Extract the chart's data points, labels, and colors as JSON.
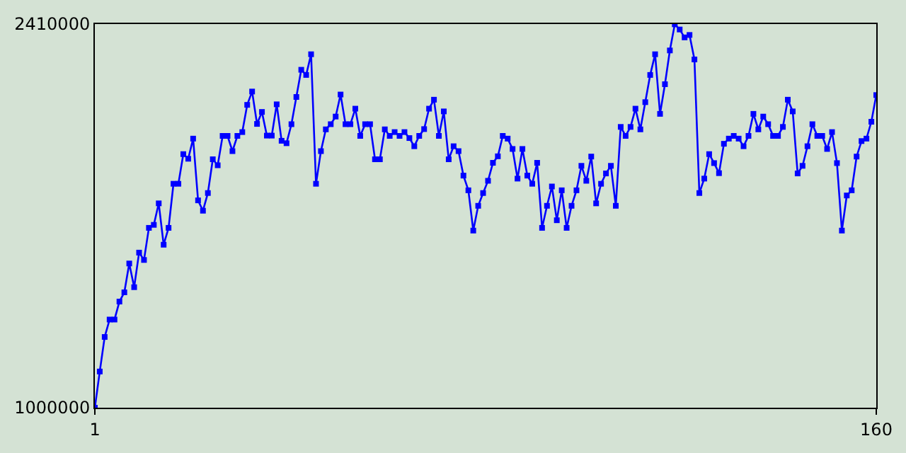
{
  "chart_data": {
    "type": "line",
    "marker": "square",
    "line_style": "solid",
    "x": [
      1,
      2,
      3,
      4,
      5,
      6,
      7,
      8,
      9,
      10,
      11,
      12,
      13,
      14,
      15,
      16,
      17,
      18,
      19,
      20,
      21,
      22,
      23,
      24,
      25,
      26,
      27,
      28,
      29,
      30,
      31,
      32,
      33,
      34,
      35,
      36,
      37,
      38,
      39,
      40,
      41,
      42,
      43,
      44,
      45,
      46,
      47,
      48,
      49,
      50,
      51,
      52,
      53,
      54,
      55,
      56,
      57,
      58,
      59,
      60,
      61,
      62,
      63,
      64,
      65,
      66,
      67,
      68,
      69,
      70,
      71,
      72,
      73,
      74,
      75,
      76,
      77,
      78,
      79,
      80,
      81,
      82,
      83,
      84,
      85,
      86,
      87,
      88,
      89,
      90,
      91,
      92,
      93,
      94,
      95,
      96,
      97,
      98,
      99,
      100,
      101,
      102,
      103,
      104,
      105,
      106,
      107,
      108,
      109,
      110,
      111,
      112,
      113,
      114,
      115,
      116,
      117,
      118,
      119,
      120,
      121,
      122,
      123,
      124,
      125,
      126,
      127,
      128,
      129,
      130,
      131,
      132,
      133,
      134,
      135,
      136,
      137,
      138,
      139,
      140,
      141,
      142,
      143,
      144,
      145,
      146,
      147,
      148,
      149,
      150,
      151,
      152,
      153,
      154,
      155,
      156,
      157,
      158,
      159,
      160
    ],
    "series": [
      {
        "color": "#0000ff",
        "values": [
          1000000,
          1133000,
          1260000,
          1324000,
          1324000,
          1390000,
          1424000,
          1530000,
          1443000,
          1570000,
          1543000,
          1661000,
          1672000,
          1751000,
          1599000,
          1661000,
          1823000,
          1823000,
          1932000,
          1915000,
          1989000,
          1762000,
          1724000,
          1789000,
          1913000,
          1891000,
          1999000,
          1999000,
          1943000,
          1999000,
          2013000,
          2113000,
          2162000,
          2043000,
          2087000,
          2000000,
          2000000,
          2115000,
          1981000,
          1972000,
          2042000,
          2142000,
          2242000,
          2223000,
          2299000,
          1823000,
          1943000,
          2023000,
          2042000,
          2070000,
          2151000,
          2042000,
          2042000,
          2099000,
          1999000,
          2042000,
          2042000,
          1913000,
          1913000,
          2023000,
          1999000,
          2013000,
          1999000,
          2013000,
          1991000,
          1961000,
          1999000,
          2024000,
          2099000,
          2132000,
          1999000,
          2089000,
          1913000,
          1961000,
          1943000,
          1853000,
          1799000,
          1651000,
          1742000,
          1789000,
          1834000,
          1900000,
          1924000,
          1999000,
          1989000,
          1951000,
          1842000,
          1951000,
          1853000,
          1823000,
          1900000,
          1661000,
          1742000,
          1813000,
          1689000,
          1799000,
          1661000,
          1742000,
          1799000,
          1889000,
          1834000,
          1923000,
          1751000,
          1823000,
          1861000,
          1889000,
          1742000,
          2032000,
          1999000,
          2032000,
          2099000,
          2023000,
          2123000,
          2223000,
          2299000,
          2080000,
          2189000,
          2313000,
          2409000,
          2390000,
          2361000,
          2370000,
          2280000,
          1789000,
          1842000,
          1932000,
          1899000,
          1862000,
          1970000,
          1989000,
          1999000,
          1989000,
          1961000,
          1999000,
          2080000,
          2023000,
          2070000,
          2042000,
          1999000,
          1999000,
          2032000,
          2132000,
          2089000,
          1861000,
          1889000,
          1961000,
          2042000,
          1999000,
          1999000,
          1951000,
          2013000,
          1899000,
          1651000,
          1780000,
          1799000,
          1923000,
          1980000,
          1989000,
          2051000,
          2149000
        ]
      }
    ],
    "xlim": [
      1,
      160
    ],
    "xticks": [
      1,
      160
    ],
    "ylim": [
      1000000,
      2410000
    ],
    "yticks": [
      1000000,
      2410000
    ]
  }
}
